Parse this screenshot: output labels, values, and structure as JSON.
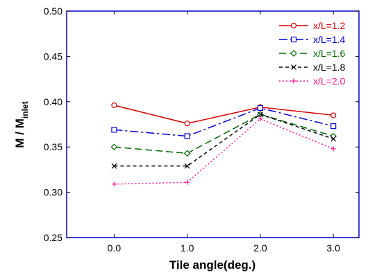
{
  "chart_data": {
    "type": "line",
    "xlabel": "Tile angle(deg.)",
    "ylabel": {
      "main": "M / M",
      "subscript": "inlet"
    },
    "x": [
      0,
      1,
      2,
      3
    ],
    "x_tick_labels": [
      "0.0",
      "1.0",
      "2.0",
      "3.0"
    ],
    "xlim": [
      -0.65,
      3.35
    ],
    "ylim": [
      0.25,
      0.5
    ],
    "y_ticks": [
      0.25,
      0.3,
      0.35,
      0.4,
      0.45,
      0.5
    ],
    "y_tick_labels": [
      "0.25",
      "0.30",
      "0.35",
      "0.40",
      "0.45",
      "0.50"
    ],
    "grid": false,
    "legend_position": "top-right",
    "series": [
      {
        "name": "x/L=1.2",
        "values": [
          0.396,
          0.376,
          0.394,
          0.385
        ],
        "color": "#d40000",
        "dash": "solid",
        "marker": "circle"
      },
      {
        "name": "x/L=1.4",
        "values": [
          0.369,
          0.362,
          0.393,
          0.373
        ],
        "color": "#0000cc",
        "dash": "dash-dot",
        "marker": "square"
      },
      {
        "name": "x/L=1.6",
        "values": [
          0.35,
          0.343,
          0.386,
          0.362
        ],
        "color": "#006600",
        "dash": "long-dash",
        "marker": "diamond"
      },
      {
        "name": "x/L=1.8",
        "values": [
          0.329,
          0.329,
          0.386,
          0.359
        ],
        "color": "#000000",
        "dash": "short-dash",
        "marker": "x"
      },
      {
        "name": "x/L=2.0",
        "values": [
          0.309,
          0.311,
          0.381,
          0.348
        ],
        "color": "#ff1493",
        "dash": "dotted",
        "marker": "plus"
      }
    ]
  }
}
